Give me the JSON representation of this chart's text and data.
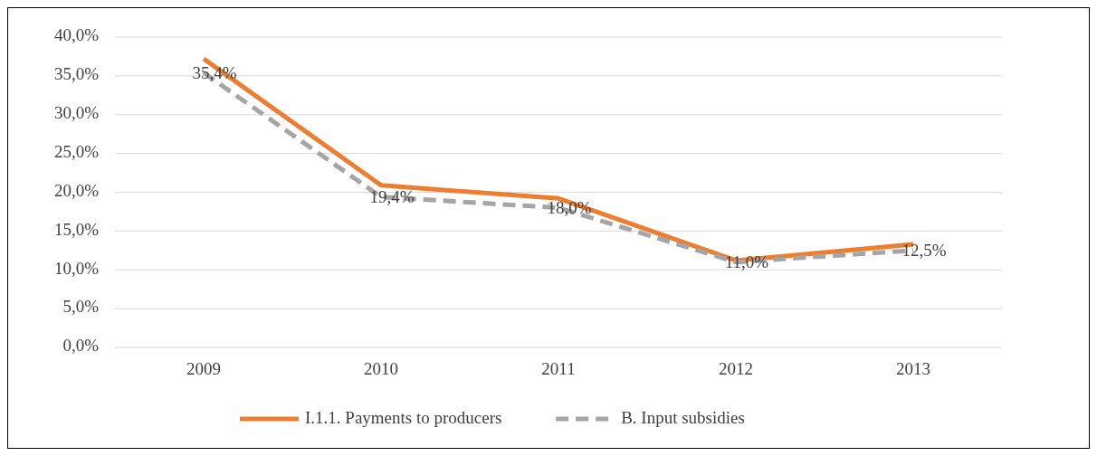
{
  "chart_data": {
    "type": "line",
    "categories": [
      "2009",
      "2010",
      "2011",
      "2012",
      "2013"
    ],
    "series": [
      {
        "name": "I.1.1. Payments to producers",
        "color": "#ed7d31",
        "values": [
          37.2,
          20.9,
          19.2,
          11.2,
          13.3
        ],
        "line_style": "solid"
      },
      {
        "name": "B. Input subsidies",
        "color": "#a5a5a5",
        "values": [
          35.4,
          19.4,
          18.0,
          11.0,
          12.5
        ],
        "line_style": "dashed",
        "value_labels": [
          "35,4%",
          "19,4%",
          "18,0%",
          "11,0%",
          "12,5%"
        ]
      }
    ],
    "ylim": [
      0,
      40
    ],
    "yticks": [
      {
        "value": 0,
        "label": "0,0%"
      },
      {
        "value": 5,
        "label": "5,0%"
      },
      {
        "value": 10,
        "label": "10,0%"
      },
      {
        "value": 15,
        "label": "15,0%"
      },
      {
        "value": 20,
        "label": "20,0%"
      },
      {
        "value": 25,
        "label": "25,0%"
      },
      {
        "value": 30,
        "label": "30,0%"
      },
      {
        "value": 35,
        "label": "35,0%"
      },
      {
        "value": 40,
        "label": "40,0%"
      }
    ],
    "grid": "y",
    "legend": "bottom",
    "marker": "none"
  }
}
